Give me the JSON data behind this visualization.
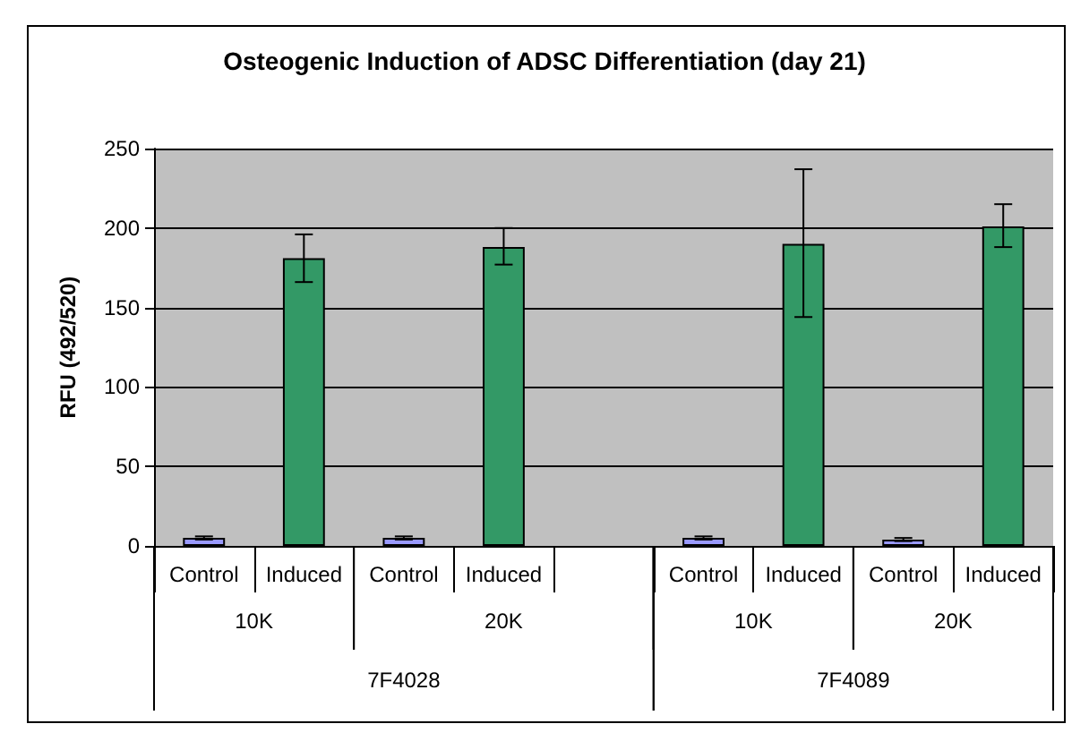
{
  "chart_data": {
    "type": "bar",
    "title": "Osteogenic Induction of ADSC Differentiation (day 21)",
    "ylabel": "RFU (492/520)",
    "categories": [
      "Control",
      "Induced",
      "Control",
      "Induced",
      null,
      "Control",
      "Induced",
      "Control",
      "Induced"
    ],
    "values": [
      5,
      181,
      5,
      188,
      null,
      5,
      190,
      4,
      201
    ],
    "colors": [
      "#9999ff",
      "#339966",
      "#9999ff",
      "#339966",
      null,
      "#9999ff",
      "#339966",
      "#9999ff",
      "#339966"
    ],
    "errors": [
      1,
      [
        166,
        196
      ],
      1,
      [
        177,
        200
      ],
      null,
      1,
      [
        144,
        237
      ],
      1,
      [
        188,
        215
      ]
    ],
    "annotations": [
      "10K",
      "20K",
      "10K",
      "20K",
      "7F4028",
      "7F4089"
    ],
    "ylim": [
      0,
      250
    ],
    "yticks": [
      0,
      50,
      100,
      150,
      200,
      250
    ],
    "grid": "y"
  }
}
